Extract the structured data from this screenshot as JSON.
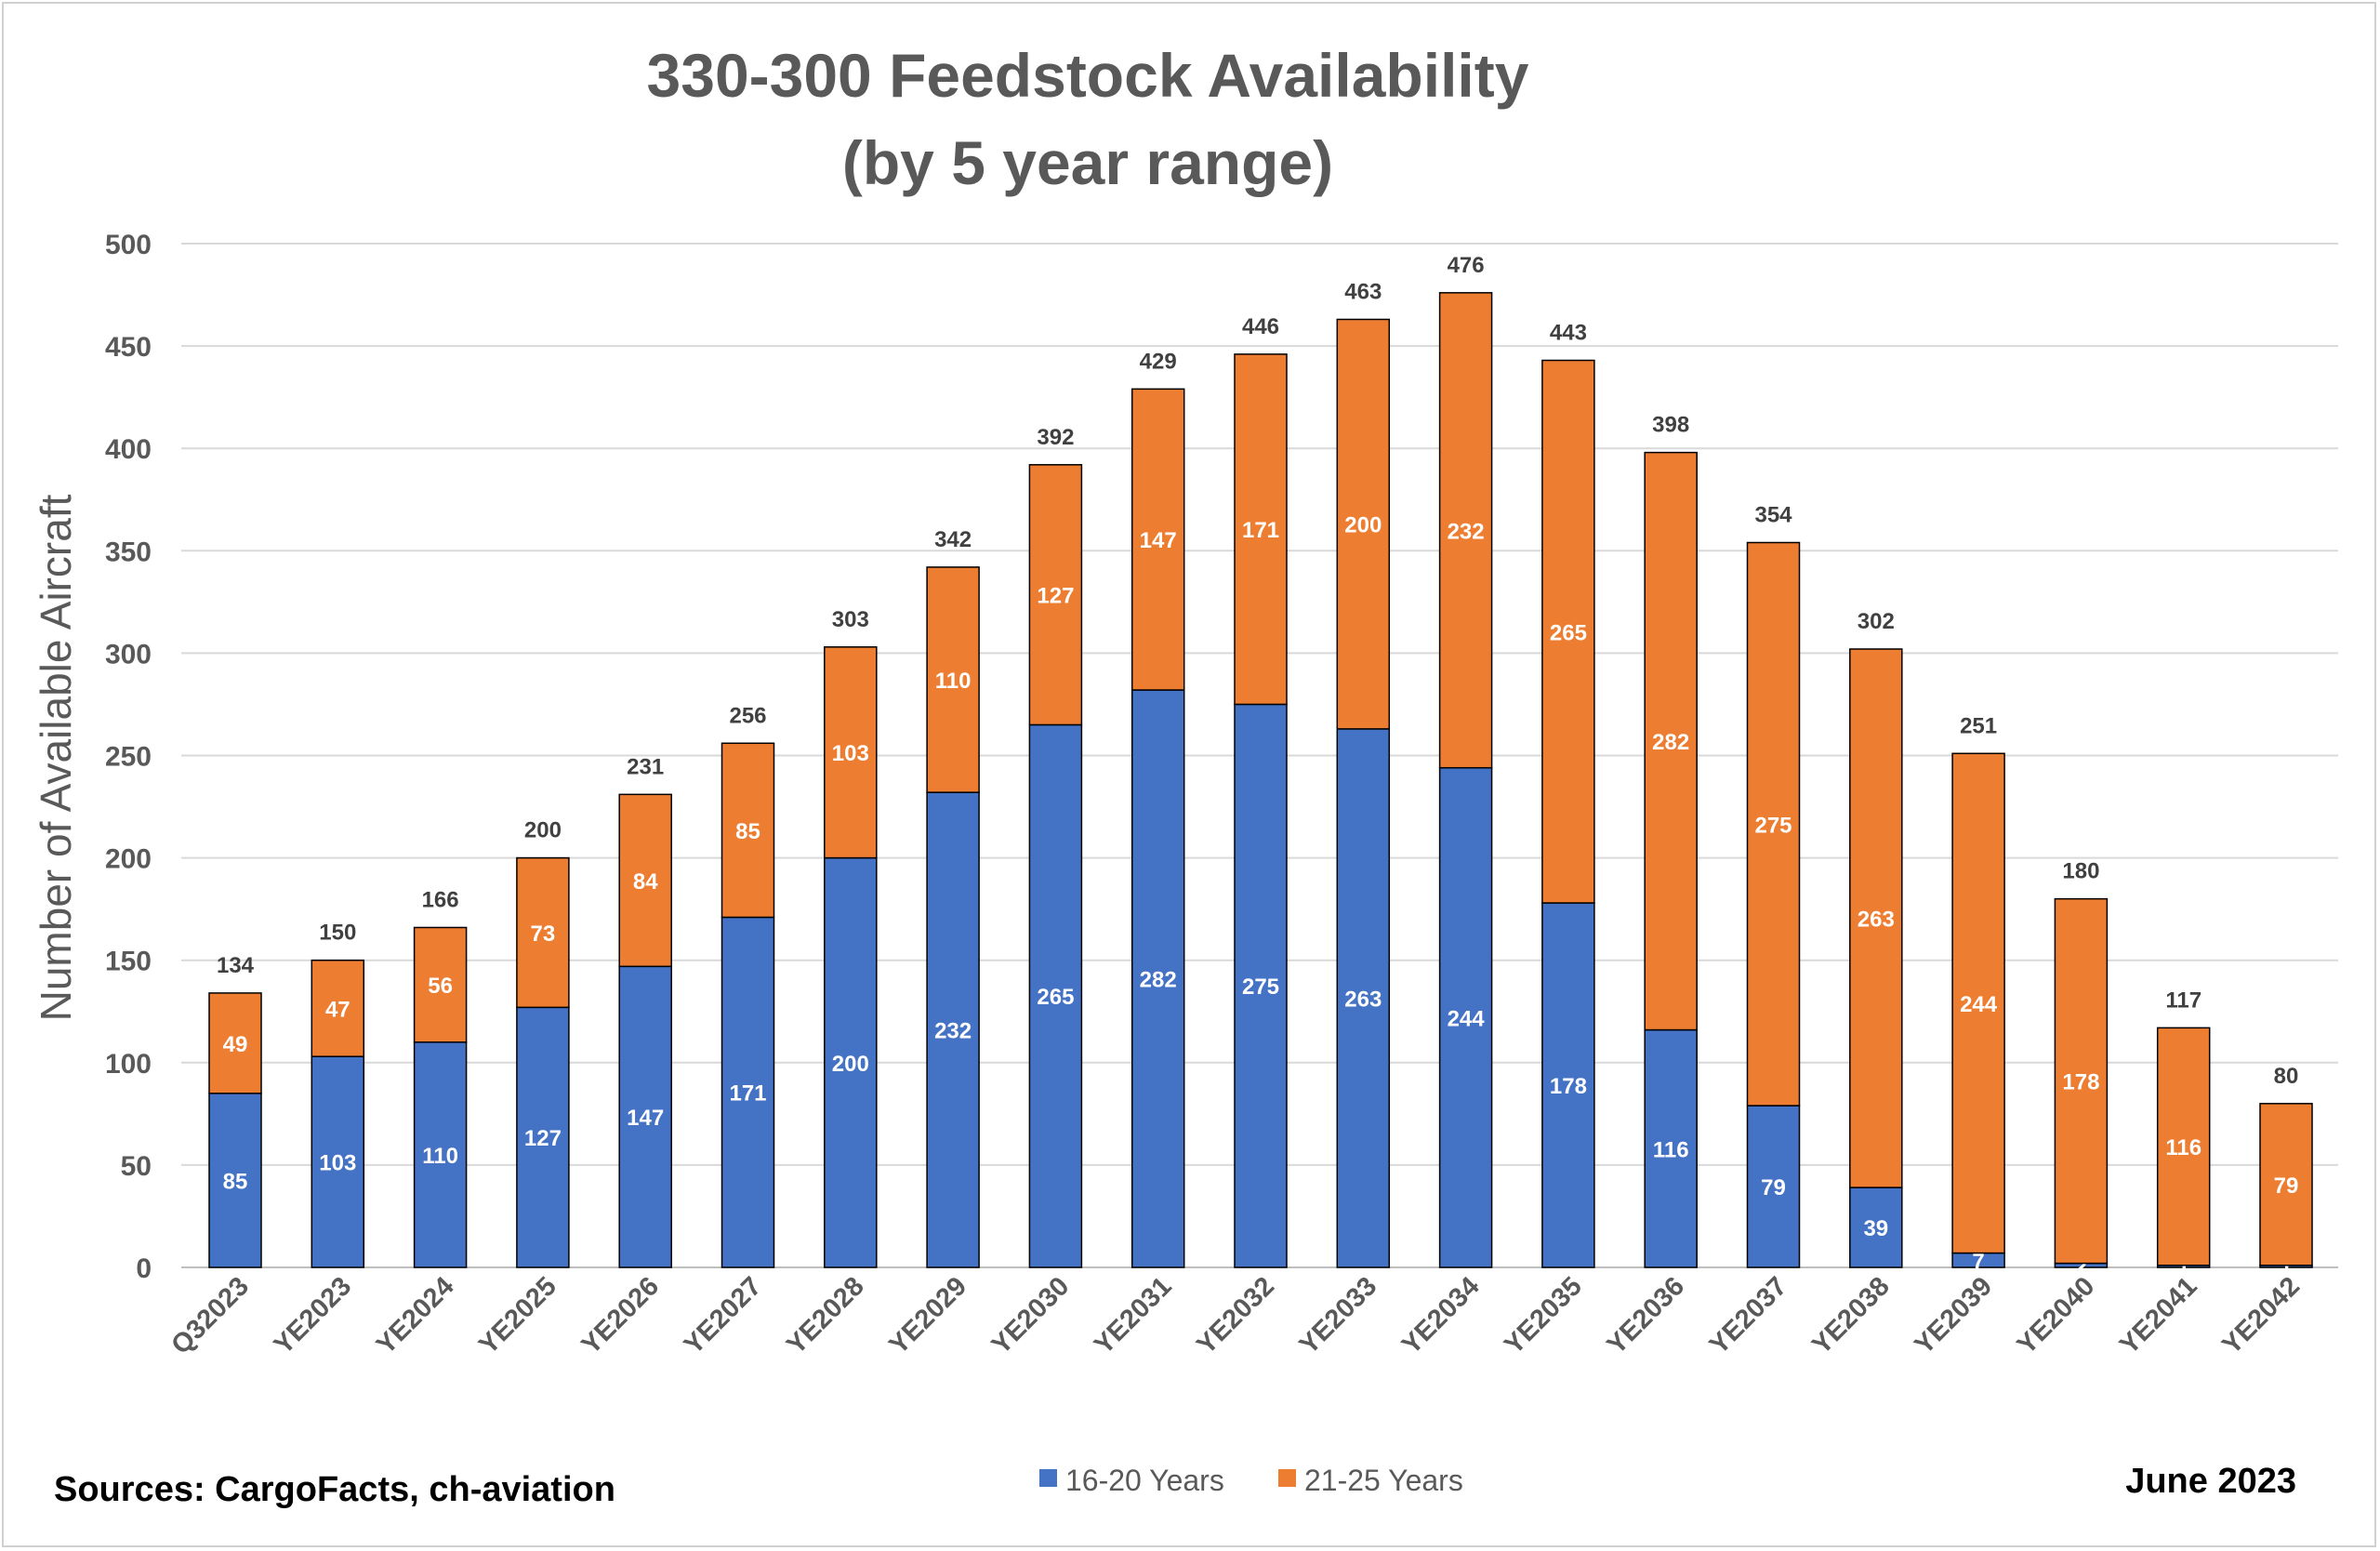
{
  "chart_data": {
    "type": "bar",
    "stacked": true,
    "title_line1": "330-300 Feedstock Availability",
    "title_line2": "(by 5 year range)",
    "ylabel": "Number of Available Aircraft",
    "xlabel": "",
    "ylim": [
      0,
      500
    ],
    "yticks": [
      0,
      50,
      100,
      150,
      200,
      250,
      300,
      350,
      400,
      450,
      500
    ],
    "grid": true,
    "legend_position": "bottom",
    "categories": [
      "Q32023",
      "YE2023",
      "YE2024",
      "YE2025",
      "YE2026",
      "YE2027",
      "YE2028",
      "YE2029",
      "YE2030",
      "YE2031",
      "YE2032",
      "YE2033",
      "YE2034",
      "YE2035",
      "YE2036",
      "YE2037",
      "YE2038",
      "YE2039",
      "YE2040",
      "YE2041",
      "YE2042"
    ],
    "series": [
      {
        "name": "16-20 Years",
        "color": "#4472c4",
        "values": [
          85,
          103,
          110,
          127,
          147,
          171,
          200,
          232,
          265,
          282,
          275,
          263,
          244,
          178,
          116,
          79,
          39,
          7,
          2,
          1,
          1
        ]
      },
      {
        "name": "21-25 Years",
        "color": "#ed7d31",
        "values": [
          49,
          47,
          56,
          73,
          84,
          85,
          103,
          110,
          127,
          147,
          171,
          200,
          232,
          265,
          282,
          275,
          263,
          244,
          178,
          116,
          79
        ]
      }
    ],
    "totals": [
      134,
      150,
      166,
      200,
      231,
      256,
      303,
      342,
      392,
      429,
      446,
      463,
      476,
      443,
      398,
      354,
      302,
      251,
      180,
      117,
      80
    ]
  },
  "footer": {
    "sources": "Sources: CargoFacts, ch-aviation",
    "date": "June 2023"
  }
}
